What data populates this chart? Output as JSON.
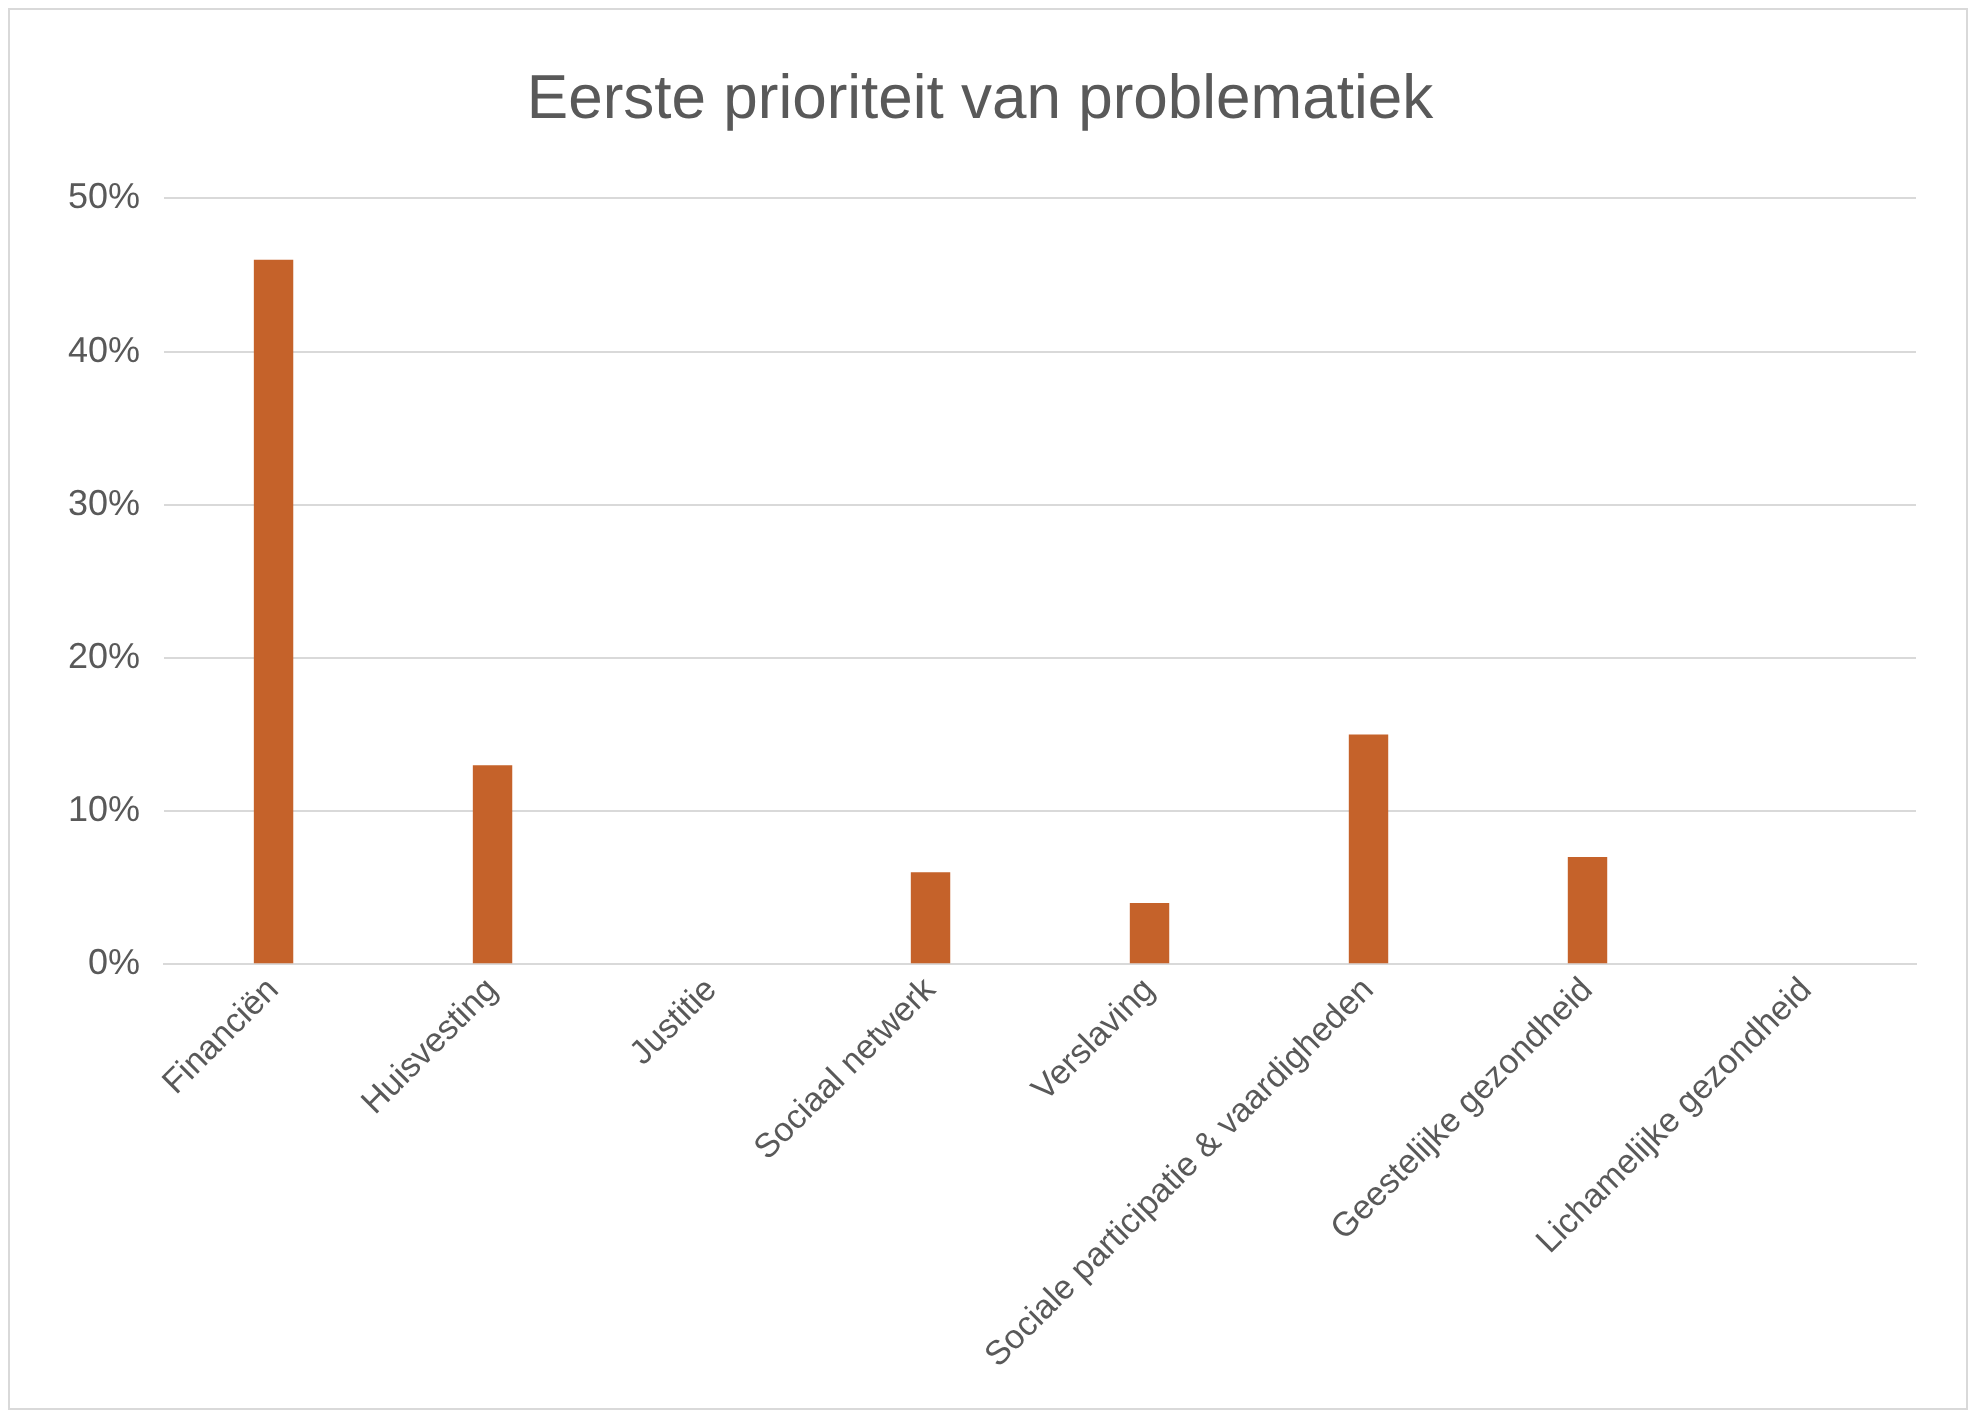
{
  "chart_data": {
    "type": "bar",
    "title": "Eerste prioriteit van problematiek",
    "categories": [
      "Financiën",
      "Huisvesting",
      "Justitie",
      "Sociaal netwerk",
      "Verslaving",
      "Sociale participatie & vaardigheden",
      "Geestelijke gezondheid",
      "Lichamelijke gezondheid"
    ],
    "values": [
      46,
      13,
      0,
      6,
      4,
      15,
      7,
      0
    ],
    "color": "#c5622a",
    "ylim": [
      0,
      50
    ],
    "yticks": [
      {
        "value": 0,
        "label": "0%"
      },
      {
        "value": 10,
        "label": "10%"
      },
      {
        "value": 20,
        "label": "20%"
      },
      {
        "value": 30,
        "label": "30%"
      },
      {
        "value": 40,
        "label": "40%"
      },
      {
        "value": 50,
        "label": "50%"
      }
    ],
    "grid": "y",
    "legend": false
  }
}
